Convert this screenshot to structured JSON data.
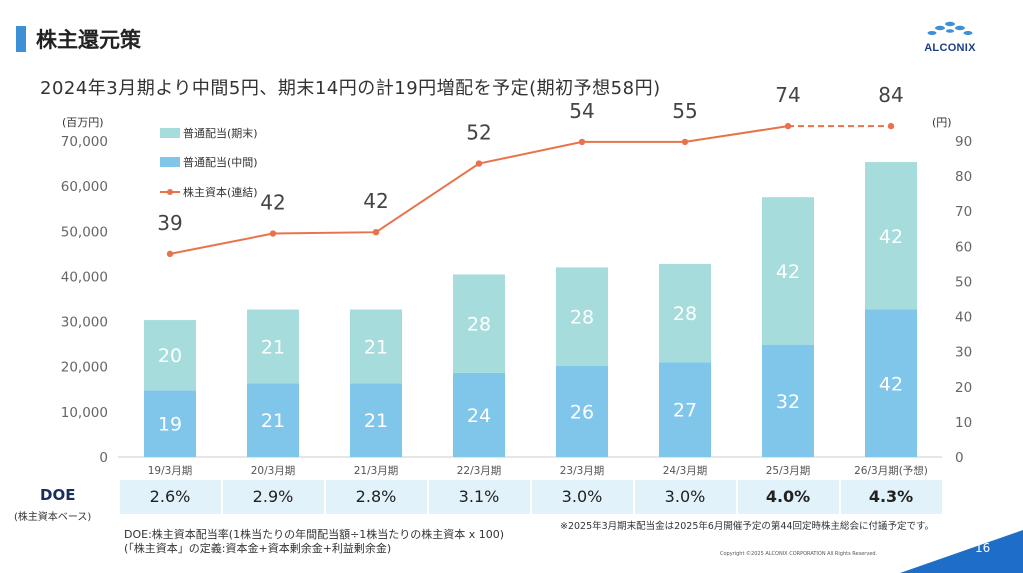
{
  "header": {
    "title": "株主還元策",
    "subtitle": "2024年3月期より中間5円、期末14円の計19円増配を予定(期初予想58円)",
    "logo_text": "ALCONIX"
  },
  "chart_data": {
    "type": "bar",
    "stacked": true,
    "categories": [
      "19/3月期",
      "20/3月期",
      "21/3月期",
      "22/3月期",
      "23/3月期",
      "24/3月期",
      "25/3月期",
      "26/3月期(予想)"
    ],
    "series": [
      {
        "name": "普通配当(中間)",
        "axis": "right",
        "values": [
          19,
          21,
          21,
          24,
          26,
          27,
          32,
          42
        ],
        "color": "#80c6ea"
      },
      {
        "name": "普通配当(期末)",
        "axis": "right",
        "values": [
          20,
          21,
          21,
          28,
          28,
          28,
          42,
          42
        ],
        "color": "#a6dcdc"
      },
      {
        "name": "株主資本(連結)",
        "type": "line",
        "axis": "left",
        "values": [
          45000,
          49500,
          49800,
          65000,
          69800,
          69800,
          73300,
          73300
        ],
        "color": "#e8734a",
        "dashed_last_segment": true
      }
    ],
    "totals": [
      39,
      42,
      42,
      52,
      54,
      55,
      74,
      84
    ],
    "y_left": {
      "unit_label": "(百万円)",
      "ylim": [
        0,
        70000
      ],
      "ticks": [
        "0",
        "10,000",
        "20,000",
        "30,000",
        "40,000",
        "50,000",
        "60,000",
        "70,000"
      ]
    },
    "y_right": {
      "unit_label": "(円)",
      "ylim": [
        0,
        90
      ],
      "ticks": [
        "0",
        "10",
        "20",
        "30",
        "40",
        "50",
        "60",
        "70",
        "80",
        "90"
      ]
    },
    "legend": {
      "placement": "top-left",
      "entries": [
        "普通配当(期末)",
        "普通配当(中間)",
        "株主資本(連結)"
      ]
    },
    "grid": false
  },
  "doe": {
    "label": "DOE",
    "sublabel": "(株主資本ベース)",
    "values": [
      "2.6%",
      "2.9%",
      "2.8%",
      "3.1%",
      "3.0%",
      "3.0%",
      "4.0%",
      "4.3%"
    ],
    "bold_from_index": 6
  },
  "notes": {
    "formula": "DOE:株主資本配当率(1株当たりの年間配当額÷1株当たりの株主資本 x 100)",
    "definition": "(「株主資本」の定義:資本金+資本剰余金+利益剰余金)",
    "note_2025": "※2025年3月期末配当金は2025年6月開催予定の第44回定時株主総会に付議予定です。"
  },
  "footer": {
    "copyright": "Copyright ©2025 ALCONIX CORPORATION All Rights Reserved.",
    "page_number": "16"
  }
}
